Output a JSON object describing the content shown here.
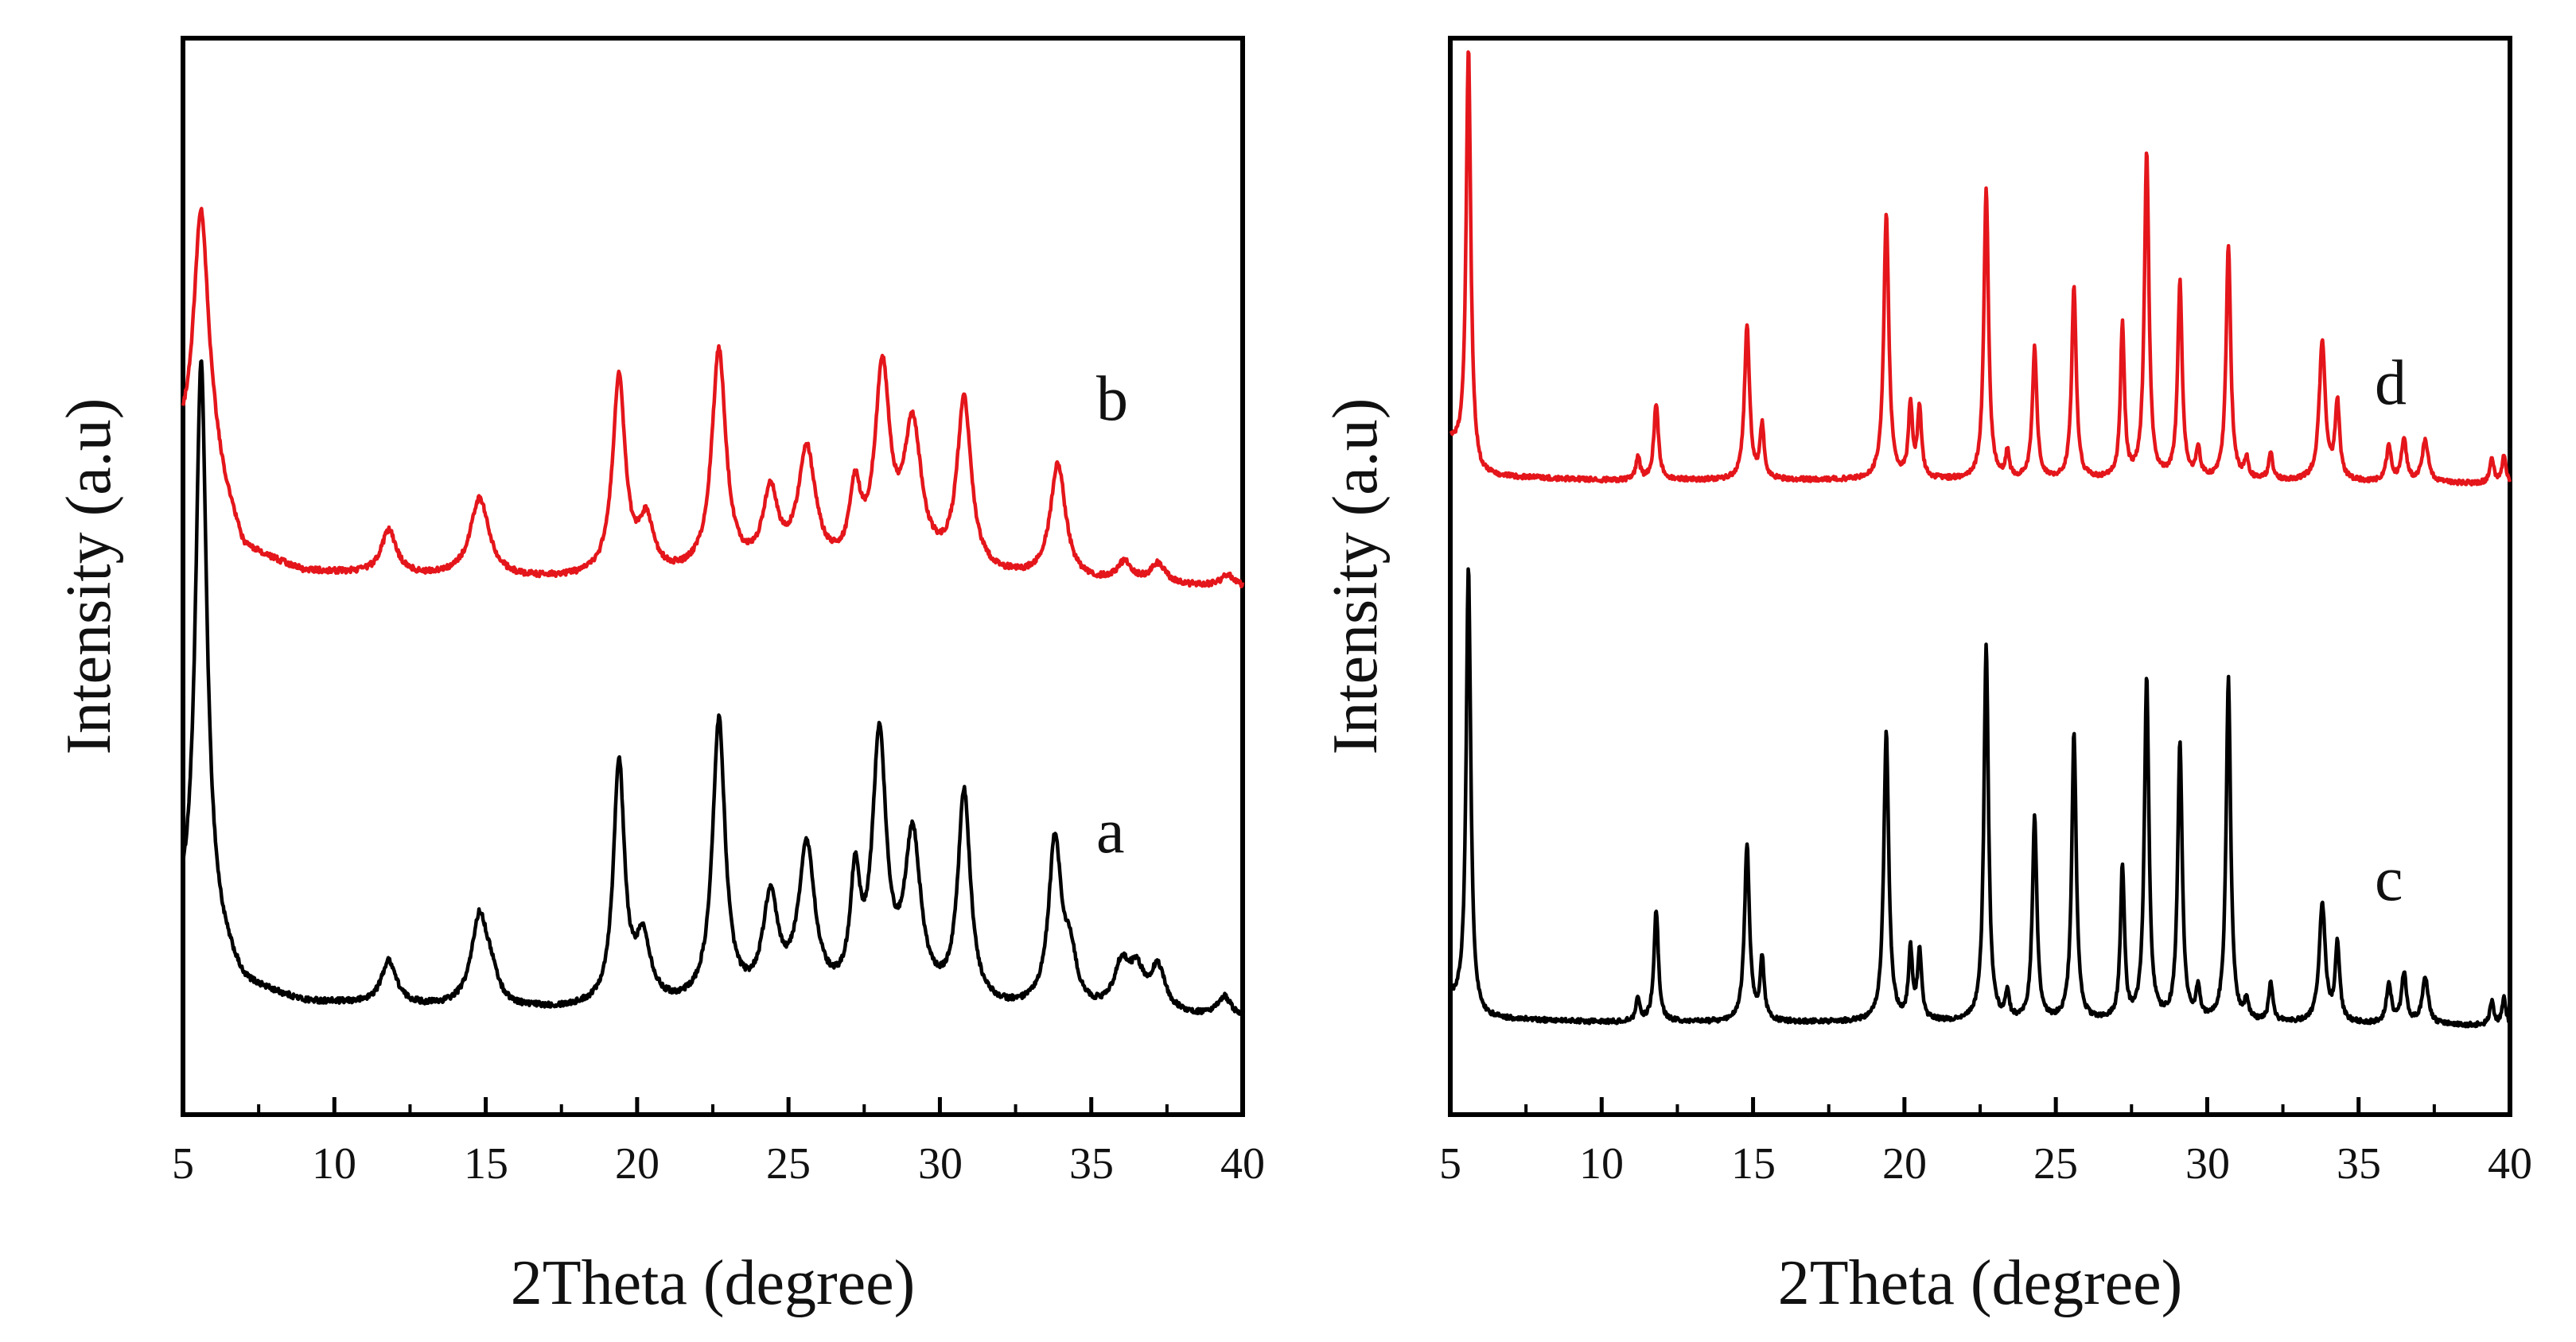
{
  "chart_data": [
    {
      "type": "line",
      "panel": "left",
      "xlabel": "2Theta (degree)",
      "ylabel": "Intensity (a.u)",
      "xlim": [
        5,
        40
      ],
      "xticks": [
        5,
        10,
        15,
        20,
        25,
        30,
        35,
        40
      ],
      "grid": false,
      "series": [
        {
          "name": "a",
          "label": "a",
          "color": "#000000",
          "baseline": 1.0,
          "noise": 0.035,
          "background": [
            [
              5,
              1.3
            ],
            [
              6,
              1.2
            ],
            [
              7,
              0.6
            ],
            [
              9,
              0.4
            ],
            [
              12,
              0.35
            ],
            [
              15,
              0.3
            ],
            [
              20,
              0.3
            ],
            [
              25,
              0.35
            ],
            [
              30,
              0.3
            ],
            [
              35,
              0.25
            ],
            [
              40,
              0.2
            ]
          ],
          "peaks": [
            [
              5.6,
              7.2,
              0.22
            ],
            [
              11.8,
              0.55,
              0.3
            ],
            [
              14.8,
              1.15,
              0.33
            ],
            [
              15.2,
              0.25,
              0.25
            ],
            [
              19.4,
              3.05,
              0.22
            ],
            [
              20.2,
              0.8,
              0.3
            ],
            [
              22.7,
              3.55,
              0.25
            ],
            [
              24.4,
              1.25,
              0.3
            ],
            [
              25.6,
              1.9,
              0.33
            ],
            [
              27.2,
              1.4,
              0.2
            ],
            [
              28.0,
              3.25,
              0.28
            ],
            [
              29.1,
              2.05,
              0.32
            ],
            [
              30.8,
              2.65,
              0.25
            ],
            [
              33.8,
              2.1,
              0.25
            ],
            [
              34.3,
              0.6,
              0.25
            ],
            [
              36.0,
              0.55,
              0.3
            ],
            [
              36.5,
              0.45,
              0.3
            ],
            [
              37.2,
              0.55,
              0.3
            ],
            [
              39.4,
              0.25,
              0.25
            ]
          ]
        },
        {
          "name": "b",
          "label": "b",
          "color": "#e4161b",
          "baseline": 6.45,
          "noise": 0.035,
          "background": [
            [
              5,
              1.8
            ],
            [
              6,
              1.6
            ],
            [
              7,
              0.6
            ],
            [
              9,
              0.35
            ],
            [
              12,
              0.3
            ],
            [
              15,
              0.25
            ],
            [
              20,
              0.25
            ],
            [
              25,
              0.3
            ],
            [
              30,
              0.3
            ],
            [
              35,
              0.2
            ],
            [
              40,
              0.15
            ]
          ],
          "peaks": [
            [
              5.6,
              3.2,
              0.3
            ],
            [
              11.8,
              0.55,
              0.3
            ],
            [
              14.8,
              1.0,
              0.38
            ],
            [
              19.4,
              2.5,
              0.25
            ],
            [
              20.3,
              0.65,
              0.3
            ],
            [
              22.7,
              2.8,
              0.28
            ],
            [
              24.4,
              0.95,
              0.3
            ],
            [
              25.6,
              1.5,
              0.35
            ],
            [
              27.2,
              0.9,
              0.22
            ],
            [
              28.1,
              2.45,
              0.3
            ],
            [
              29.1,
              1.75,
              0.35
            ],
            [
              30.8,
              2.15,
              0.28
            ],
            [
              33.9,
              1.45,
              0.3
            ],
            [
              36.1,
              0.25,
              0.3
            ],
            [
              37.2,
              0.25,
              0.3
            ],
            [
              39.5,
              0.15,
              0.25
            ]
          ]
        }
      ],
      "labels": [
        "a",
        "b"
      ]
    },
    {
      "type": "line",
      "panel": "right",
      "xlabel": "2Theta (degree)",
      "ylabel": "Intensity (a.u)",
      "xlim": [
        5,
        40
      ],
      "xticks": [
        5,
        10,
        15,
        20,
        25,
        30,
        35,
        40
      ],
      "grid": false,
      "series": [
        {
          "name": "c",
          "label": "c",
          "color": "#000000",
          "baseline": 1.1,
          "noise": 0.03,
          "background": [
            [
              5,
              0.4
            ],
            [
              6,
              0.15
            ],
            [
              10,
              0.1
            ],
            [
              20,
              0.1
            ],
            [
              30,
              0.1
            ],
            [
              40,
              0.05
            ]
          ],
          "peaks": [
            [
              5.6,
              5.8,
              0.09
            ],
            [
              11.2,
              0.3,
              0.08
            ],
            [
              11.8,
              1.45,
              0.09
            ],
            [
              14.8,
              2.3,
              0.1
            ],
            [
              15.3,
              0.8,
              0.08
            ],
            [
              19.4,
              3.75,
              0.1
            ],
            [
              20.2,
              0.9,
              0.08
            ],
            [
              20.5,
              0.9,
              0.08
            ],
            [
              22.7,
              4.9,
              0.09
            ],
            [
              23.4,
              0.35,
              0.07
            ],
            [
              24.3,
              2.65,
              0.09
            ],
            [
              25.6,
              3.75,
              0.09
            ],
            [
              27.2,
              2.0,
              0.08
            ],
            [
              28.0,
              4.45,
              0.09
            ],
            [
              29.1,
              3.6,
              0.09
            ],
            [
              29.7,
              0.4,
              0.08
            ],
            [
              30.7,
              4.45,
              0.09
            ],
            [
              31.3,
              0.25,
              0.08
            ],
            [
              32.1,
              0.5,
              0.08
            ],
            [
              33.8,
              1.55,
              0.12
            ],
            [
              34.3,
              1.0,
              0.09
            ],
            [
              36.0,
              0.5,
              0.1
            ],
            [
              36.5,
              0.65,
              0.1
            ],
            [
              37.2,
              0.6,
              0.12
            ],
            [
              39.4,
              0.3,
              0.08
            ],
            [
              39.8,
              0.35,
              0.08
            ]
          ]
        },
        {
          "name": "d",
          "label": "d",
          "color": "#e4161b",
          "baseline": 8.15,
          "noise": 0.03,
          "background": [
            [
              5,
              0.6
            ],
            [
              6,
              0.15
            ],
            [
              10,
              0.1
            ],
            [
              20,
              0.1
            ],
            [
              30,
              0.1
            ],
            [
              40,
              0.05
            ]
          ],
          "peaks": [
            [
              5.6,
              5.4,
              0.09
            ],
            [
              11.2,
              0.3,
              0.08
            ],
            [
              11.8,
              1.0,
              0.09
            ],
            [
              14.8,
              2.0,
              0.1
            ],
            [
              15.3,
              0.7,
              0.08
            ],
            [
              19.4,
              3.45,
              0.1
            ],
            [
              20.2,
              0.95,
              0.08
            ],
            [
              20.5,
              0.9,
              0.08
            ],
            [
              22.7,
              3.8,
              0.09
            ],
            [
              23.4,
              0.35,
              0.07
            ],
            [
              24.3,
              1.7,
              0.09
            ],
            [
              25.6,
              2.5,
              0.09
            ],
            [
              27.2,
              2.0,
              0.08
            ],
            [
              28.0,
              4.25,
              0.09
            ],
            [
              29.1,
              2.55,
              0.09
            ],
            [
              29.7,
              0.4,
              0.08
            ],
            [
              30.7,
              3.05,
              0.09
            ],
            [
              31.3,
              0.25,
              0.08
            ],
            [
              32.1,
              0.35,
              0.08
            ],
            [
              33.8,
              1.8,
              0.12
            ],
            [
              34.3,
              1.0,
              0.09
            ],
            [
              36.0,
              0.45,
              0.1
            ],
            [
              36.5,
              0.55,
              0.1
            ],
            [
              37.2,
              0.55,
              0.12
            ],
            [
              39.4,
              0.35,
              0.08
            ],
            [
              39.8,
              0.35,
              0.08
            ]
          ]
        }
      ],
      "labels": [
        "c",
        "d"
      ]
    }
  ]
}
